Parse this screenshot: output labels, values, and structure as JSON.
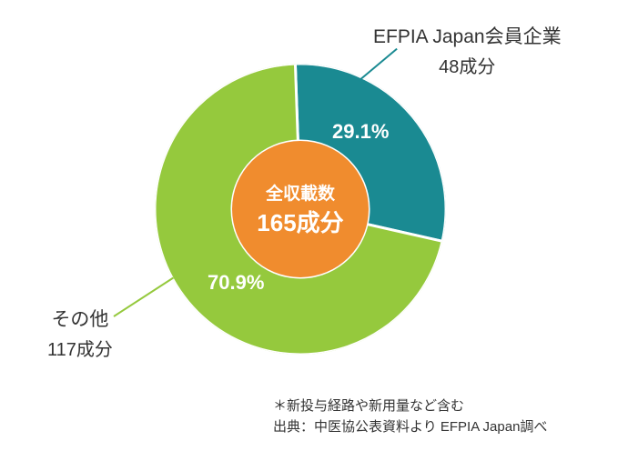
{
  "chart": {
    "type": "donut",
    "background_color": "#ffffff",
    "slices": [
      {
        "key": "efpia",
        "label_title": "EFPIA Japan会員企業",
        "label_sub": "48成分",
        "pct_text": "29.1%",
        "value": 29.1,
        "color": "#1a8a92",
        "leader_color": "#1a8a92"
      },
      {
        "key": "other",
        "label_title": "その他",
        "label_sub": "117成分",
        "pct_text": "70.9%",
        "value": 70.9,
        "color": "#95c93d",
        "leader_color": "#95c93d"
      }
    ],
    "center": {
      "line1": "全収載数",
      "line2": "165成分",
      "bg_color": "#f08c2e",
      "text_color": "#ffffff"
    },
    "pct_label_color": "#ffffff",
    "ext_label_color": "#333333",
    "outer_radius": 160,
    "inner_radius": 75,
    "start_angle_deg": -2
  },
  "footer": {
    "line1": "＊新投与経路や新用量など含む",
    "line2": "出典：中医協公表資料より EFPIA Japan調べ"
  }
}
